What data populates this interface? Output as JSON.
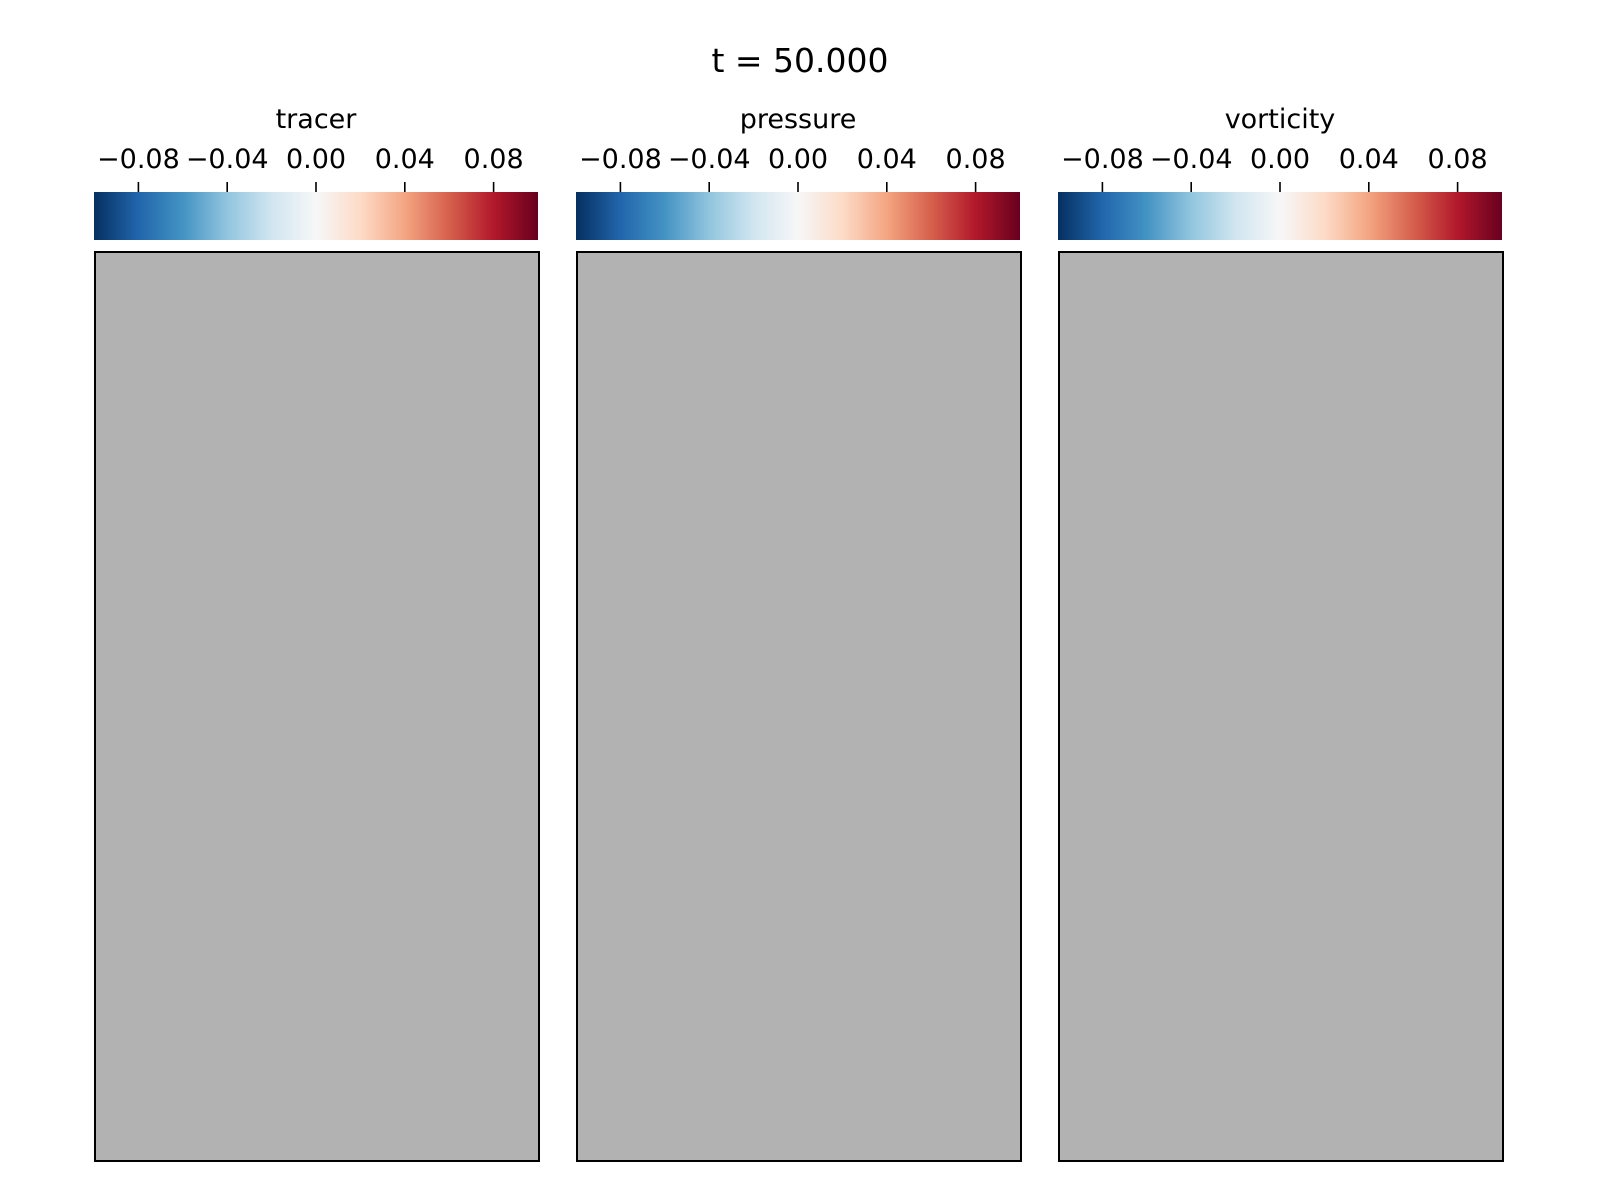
{
  "figure": {
    "title": "t = 50.000",
    "background_color": "#ffffff",
    "masked_color": "#b2b2b2"
  },
  "chart_data": [
    {
      "type": "heatmap",
      "colorbar": {
        "label": "tracer",
        "colormap": "RdBu_r",
        "orientation": "horizontal",
        "position": "top",
        "vmin": -0.1,
        "vmax": 0.1,
        "ticks": [
          -0.08,
          -0.04,
          0.0,
          0.04,
          0.08
        ],
        "tick_labels": [
          "−0.08",
          "−0.04",
          "0.00",
          "0.04",
          "0.08"
        ]
      },
      "field": {
        "state": "uniform masked (gray)",
        "color": "#b2b2b2"
      }
    },
    {
      "type": "heatmap",
      "colorbar": {
        "label": "pressure",
        "colormap": "RdBu_r",
        "orientation": "horizontal",
        "position": "top",
        "vmin": -0.1,
        "vmax": 0.1,
        "ticks": [
          -0.08,
          -0.04,
          0.0,
          0.04,
          0.08
        ],
        "tick_labels": [
          "−0.08",
          "−0.04",
          "0.00",
          "0.04",
          "0.08"
        ]
      },
      "field": {
        "state": "uniform masked (gray)",
        "color": "#b2b2b2"
      }
    },
    {
      "type": "heatmap",
      "colorbar": {
        "label": "vorticity",
        "colormap": "RdBu_r",
        "orientation": "horizontal",
        "position": "top",
        "vmin": -0.1,
        "vmax": 0.1,
        "ticks": [
          -0.08,
          -0.04,
          0.0,
          0.04,
          0.08
        ],
        "tick_labels": [
          "−0.08",
          "−0.04",
          "0.00",
          "0.04",
          "0.08"
        ]
      },
      "field": {
        "state": "uniform masked (gray)",
        "color": "#b2b2b2"
      }
    }
  ],
  "colormap_stops": [
    "#053061",
    "#2166ac",
    "#4393c3",
    "#92c5de",
    "#d1e5f0",
    "#f7f7f7",
    "#fddbc7",
    "#f4a582",
    "#d6604d",
    "#b2182b",
    "#67001f"
  ]
}
